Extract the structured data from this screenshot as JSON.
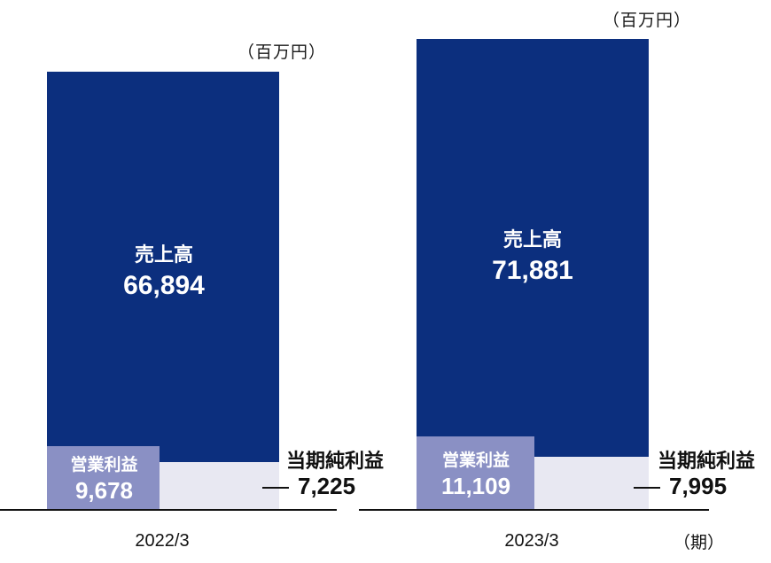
{
  "unit_label": "（百万円）",
  "period_label": "（期）",
  "chart_data": {
    "type": "bar",
    "categories": [
      "2022/3",
      "2023/3"
    ],
    "series": [
      {
        "name": "売上高",
        "values": [
          66894,
          71881
        ],
        "display": [
          "66,894",
          "71,881"
        ]
      },
      {
        "name": "当期純利益",
        "values": [
          7225,
          7995
        ],
        "display": [
          "7,225",
          "7,995"
        ]
      },
      {
        "name": "営業利益",
        "values": [
          9678,
          11109
        ],
        "display": [
          "9,678",
          "11,109"
        ]
      }
    ],
    "colors": {
      "sales": "#0c2f7e",
      "net_income": "#e8e8f2",
      "operating_income": "#8a90c4"
    },
    "title": "",
    "xlabel": "",
    "ylabel": "",
    "legend": "none",
    "grid": false
  }
}
